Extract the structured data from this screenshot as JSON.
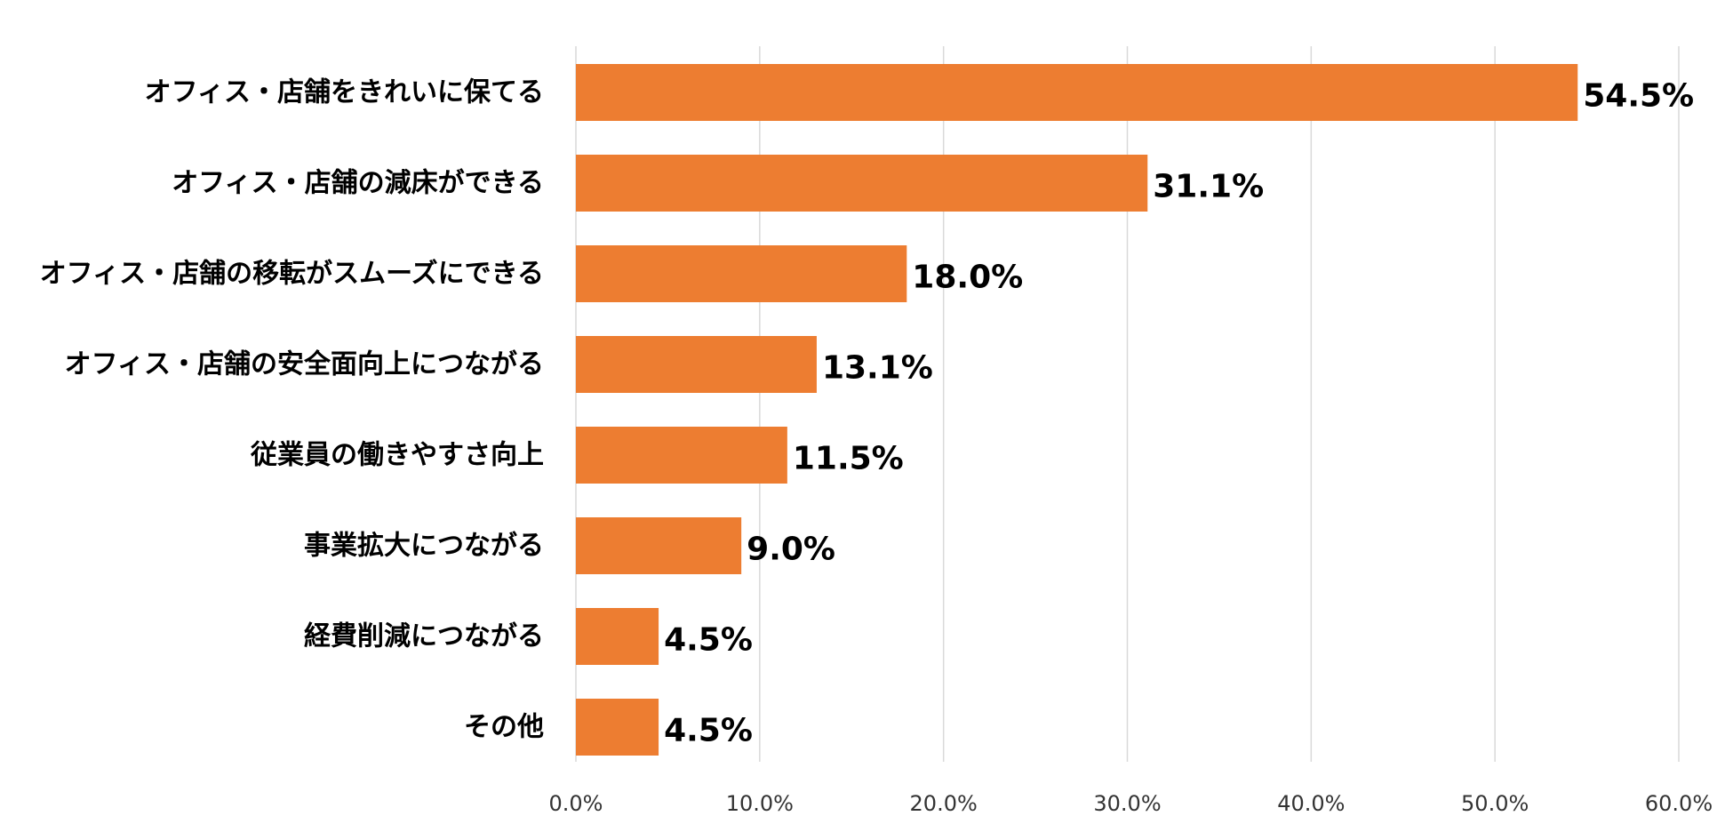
{
  "chart_data": {
    "type": "bar",
    "orientation": "horizontal",
    "categories": [
      "オフィス・店舗をきれいに保てる",
      "オフィス・店舗の減床ができる",
      "オフィス・店舗の移転がスムーズにできる",
      "オフィス・店舗の安全面向上につながる",
      "従業員の働きやすさ向上",
      "事業拡大につながる",
      "経費削減につながる",
      "その他"
    ],
    "values": [
      54.5,
      31.1,
      18.0,
      13.1,
      11.5,
      9.0,
      4.5,
      4.5
    ],
    "value_labels": [
      "54.5%",
      "31.1%",
      "18.0%",
      "13.1%",
      "11.5%",
      "9.0%",
      "4.5%",
      "4.5%"
    ],
    "xlim": [
      0,
      60
    ],
    "x_ticks": [
      0,
      10,
      20,
      30,
      40,
      50,
      60
    ],
    "x_tick_labels": [
      "0.0%",
      "10.0%",
      "20.0%",
      "30.0%",
      "40.0%",
      "50.0%",
      "60.0%"
    ],
    "grid": true,
    "legend": "none",
    "colors": {
      "bar": "#ED7D31",
      "highlight_label": "#E8141E",
      "label": "#000000",
      "grid": "#D9D9D9"
    },
    "highlight_index": 0
  }
}
